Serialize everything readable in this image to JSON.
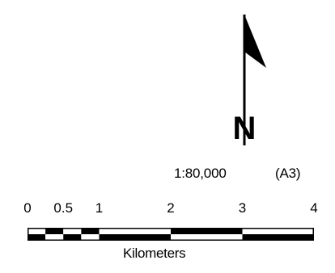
{
  "scale": {
    "ratio_text": "1:80,000",
    "paper_text": "(A3)"
  },
  "north_arrow": {
    "letter": "N"
  },
  "scale_bar": {
    "ticks": [
      {
        "label": "0",
        "km": 0
      },
      {
        "label": "0.5",
        "km": 0.5
      },
      {
        "label": "1",
        "km": 1
      },
      {
        "label": "2",
        "km": 2
      },
      {
        "label": "3",
        "km": 3
      },
      {
        "label": "4",
        "km": 4
      }
    ],
    "max_km": 4,
    "units": "Kilometers"
  }
}
